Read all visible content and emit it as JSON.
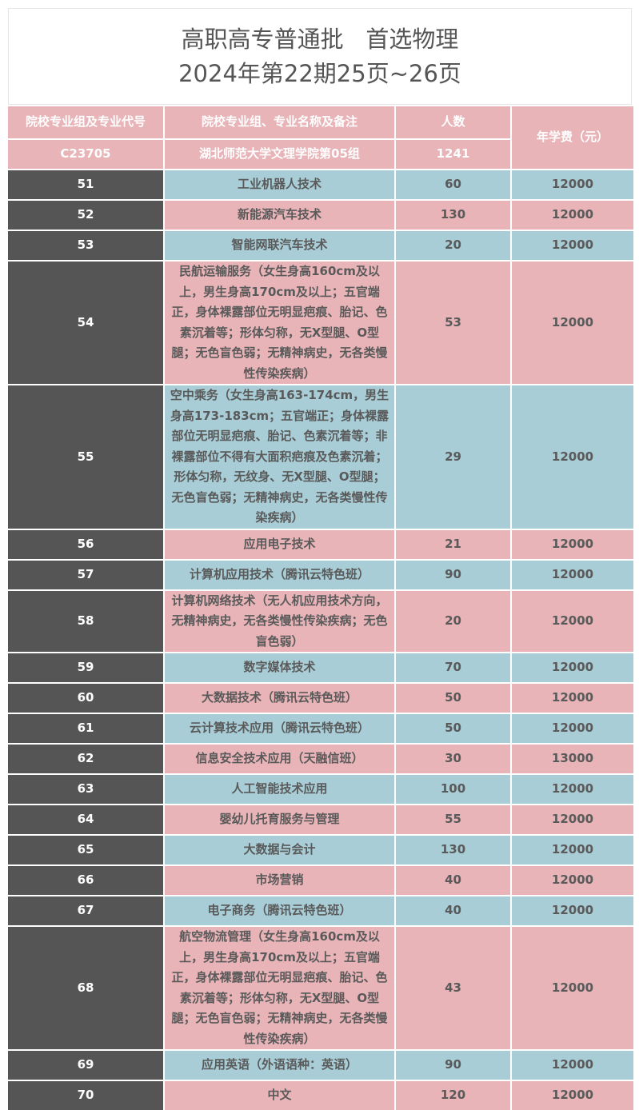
{
  "title": {
    "line1": "高职高专普通批   首选物理",
    "line2": "2024年第22期25页~26页"
  },
  "colors": {
    "pink": "#e8b4b8",
    "blue": "#a8cdd6",
    "dark": "#555555",
    "text": "#5a5a5a"
  },
  "table": {
    "headers": {
      "code": "院校专业组及专业代号",
      "name": "院校专业组、专业名称及备注",
      "count": "人数",
      "fee": "年学费（元）"
    },
    "group": {
      "code": "C23705",
      "name": "湖北师范大学文理学院第05组",
      "count": "1241"
    },
    "rows": [
      {
        "code": "51",
        "name": "工业机器人技术",
        "count": "60",
        "fee": "12000"
      },
      {
        "code": "52",
        "name": "新能源汽车技术",
        "count": "130",
        "fee": "12000"
      },
      {
        "code": "53",
        "name": "智能网联汽车技术",
        "count": "20",
        "fee": "12000"
      },
      {
        "code": "54",
        "name": "民航运输服务（女生身高160cm及以上，男生身高170cm及以上；五官端正，身体裸露部位无明显疤痕、胎记、色素沉着等；形体匀称，无X型腿、O型腿；无色盲色弱；无精神病史，无各类慢性传染疾病）",
        "count": "53",
        "fee": "12000"
      },
      {
        "code": "55",
        "name": "空中乘务（女生身高163-174cm，男生身高173-183cm；五官端正；身体裸露部位无明显疤痕、胎记、色素沉着等；非裸露部位不得有大面积疤痕及色素沉着；形体匀称，无纹身、无X型腿、O型腿；无色盲色弱；无精神病史，无各类慢性传染疾病）",
        "count": "29",
        "fee": "12000"
      },
      {
        "code": "56",
        "name": "应用电子技术",
        "count": "21",
        "fee": "12000"
      },
      {
        "code": "57",
        "name": "计算机应用技术（腾讯云特色班）",
        "count": "90",
        "fee": "12000"
      },
      {
        "code": "58",
        "name": "计算机网络技术（无人机应用技术方向，无精神病史，无各类慢性传染疾病；无色盲色弱）",
        "count": "20",
        "fee": "12000"
      },
      {
        "code": "59",
        "name": "数字媒体技术",
        "count": "70",
        "fee": "12000"
      },
      {
        "code": "60",
        "name": "大数据技术（腾讯云特色班）",
        "count": "50",
        "fee": "12000"
      },
      {
        "code": "61",
        "name": "云计算技术应用（腾讯云特色班）",
        "count": "50",
        "fee": "12000"
      },
      {
        "code": "62",
        "name": "信息安全技术应用（天融信班）",
        "count": "30",
        "fee": "13000"
      },
      {
        "code": "63",
        "name": "人工智能技术应用",
        "count": "100",
        "fee": "12000"
      },
      {
        "code": "64",
        "name": "婴幼儿托育服务与管理",
        "count": "55",
        "fee": "12000"
      },
      {
        "code": "65",
        "name": "大数据与会计",
        "count": "130",
        "fee": "12000"
      },
      {
        "code": "66",
        "name": "市场营销",
        "count": "40",
        "fee": "12000"
      },
      {
        "code": "67",
        "name": "电子商务（腾讯云特色班）",
        "count": "40",
        "fee": "12000"
      },
      {
        "code": "68",
        "name": "航空物流管理（女生身高160cm及以上，男生身高170cm及以上；五官端正，身体裸露部位无明显疤痕、胎记、色素沉着等；形体匀称，无X型腿、O型腿；无色盲色弱；无精神病史，无各类慢性传染疾病）",
        "count": "43",
        "fee": "12000"
      },
      {
        "code": "69",
        "name": "应用英语（外语语种：英语）",
        "count": "90",
        "fee": "12000"
      },
      {
        "code": "70",
        "name": "中文",
        "count": "120",
        "fee": "12000"
      }
    ]
  }
}
